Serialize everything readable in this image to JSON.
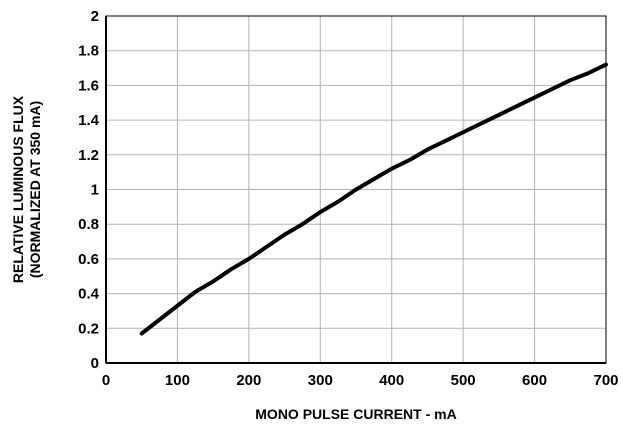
{
  "chart_data": {
    "type": "line",
    "title": "",
    "xlabel": "MONO PULSE CURRENT - mA",
    "ylabel_line1": "RELATIVE LUMINOUS FLUX",
    "ylabel_line2": "(NORMALIZED AT 350 mA)",
    "xlim": [
      0,
      700
    ],
    "ylim": [
      0,
      2
    ],
    "x_ticks": [
      0,
      100,
      200,
      300,
      400,
      500,
      600,
      700
    ],
    "x_tick_labels": [
      "0",
      "100",
      "200",
      "300",
      "400",
      "500",
      "600",
      "700"
    ],
    "y_ticks": [
      0,
      0.2,
      0.4,
      0.6,
      0.8,
      1.0,
      1.2,
      1.4,
      1.6,
      1.8,
      2.0
    ],
    "y_tick_labels": [
      "0",
      "0.2",
      "0.4",
      "0.6",
      "0.8",
      "1",
      "1.2",
      "1.4",
      "1.6",
      "1.8",
      "2"
    ],
    "grid": true,
    "legend": "none",
    "line_color": "#000000",
    "grid_color": "#b3b3b3",
    "series": [
      {
        "x": [
          50,
          75,
          100,
          125,
          150,
          175,
          200,
          225,
          250,
          275,
          300,
          325,
          350,
          375,
          400,
          425,
          450,
          475,
          500,
          525,
          550,
          575,
          600,
          625,
          650,
          675,
          700
        ],
        "y": [
          0.17,
          0.25,
          0.33,
          0.41,
          0.47,
          0.54,
          0.6,
          0.67,
          0.74,
          0.8,
          0.87,
          0.93,
          1.0,
          1.06,
          1.12,
          1.17,
          1.23,
          1.28,
          1.33,
          1.38,
          1.43,
          1.48,
          1.53,
          1.58,
          1.63,
          1.67,
          1.72
        ]
      }
    ]
  }
}
